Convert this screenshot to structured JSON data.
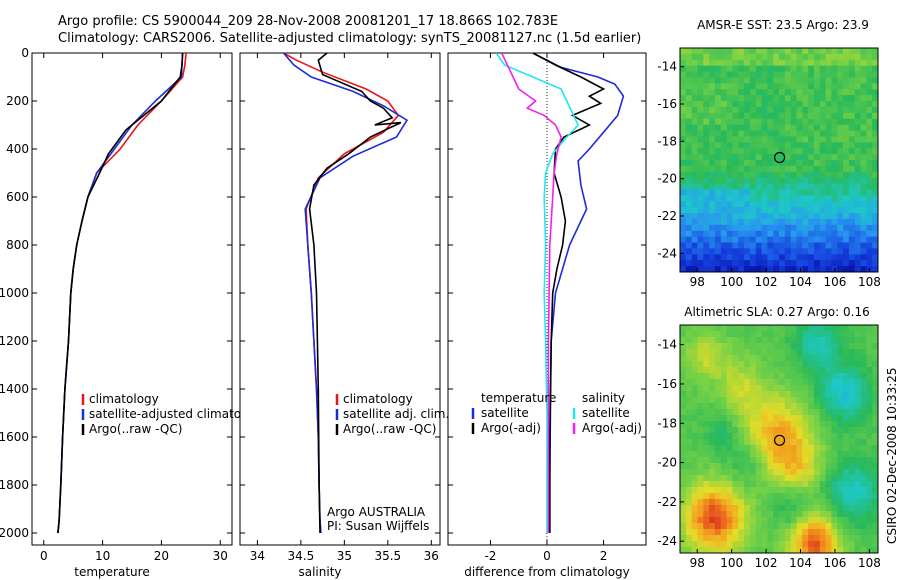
{
  "figure": {
    "title_line1": "Argo profile: CS 5900044_209 28-Nov-2008 20081201_17 18.866S 102.783E",
    "title_line2": "Climatology: CARS2006. Satellite-adjusted climatology: synTS_20081127.nc (1.5d earlier)",
    "footer_vertical": "CSIRO 02-Dec-2008 10:33:25",
    "colors": {
      "climatology": "#e8141e",
      "satellite": "#1d2bd8",
      "argo": "#000000",
      "satellite_sal": "#22e6f0",
      "argo_sal": "#f51ff0"
    }
  },
  "chart_data": [
    {
      "type": "line",
      "id": "temperature",
      "xlabel": "temperature",
      "ylabel": "",
      "xlim": [
        -2,
        32
      ],
      "ylim": [
        2050,
        0
      ],
      "xticks": [
        0,
        10,
        20,
        30
      ],
      "yticks": [
        0,
        200,
        400,
        600,
        800,
        1000,
        1200,
        1400,
        1600,
        1800,
        2000
      ],
      "legend": [
        "climatology",
        "satellite-adjusted climatology",
        "Argo(..raw -QC)"
      ],
      "series": [
        {
          "name": "climatology",
          "color_key": "climatology",
          "x": [
            24.2,
            24,
            23.6,
            20,
            16,
            13,
            11,
            9,
            7.5,
            6.5,
            5.6,
            5,
            4.6,
            4.2,
            3.6,
            3.2,
            2.9,
            2.6,
            2.4
          ],
          "y": [
            0,
            50,
            100,
            200,
            300,
            400,
            450,
            500,
            600,
            700,
            800,
            900,
            1000,
            1200,
            1400,
            1600,
            1800,
            1950,
            2000
          ]
        },
        {
          "name": "satellite-adjusted",
          "color_key": "satellite",
          "x": [
            23.6,
            23.5,
            23.4,
            19,
            15,
            12,
            10.5,
            9,
            7.5,
            6.5,
            5.6,
            5,
            4.6,
            4.2,
            3.6,
            3.2,
            2.9,
            2.6,
            2.4
          ],
          "y": [
            0,
            50,
            100,
            200,
            300,
            400,
            450,
            500,
            600,
            700,
            800,
            900,
            1000,
            1200,
            1400,
            1600,
            1800,
            1950,
            2000
          ]
        },
        {
          "name": "Argo",
          "color_key": "argo",
          "x": [
            23.6,
            23.5,
            23.2,
            20,
            17,
            14,
            11,
            9.5,
            7.5,
            6.5,
            5.6,
            5,
            4.6,
            4.2,
            3.6,
            3.2,
            2.9,
            2.6,
            2.4
          ],
          "y": [
            0,
            50,
            100,
            200,
            260,
            320,
            420,
            500,
            600,
            700,
            800,
            900,
            1000,
            1200,
            1400,
            1600,
            1800,
            1950,
            2000
          ]
        }
      ]
    },
    {
      "type": "line",
      "id": "salinity",
      "xlabel": "salinity",
      "xlim": [
        33.8,
        36.1
      ],
      "ylim": [
        2050,
        0
      ],
      "xticks": [
        34,
        34.5,
        35,
        35.5,
        36
      ],
      "legend": [
        "climatology",
        "satellite adj. clim.",
        "Argo(..raw -QC)"
      ],
      "annotation": [
        "Argo AUSTRALIA",
        "PI: Susan Wijffels"
      ],
      "series": [
        {
          "name": "climatology",
          "color_key": "climatology",
          "x": [
            34.3,
            34.45,
            34.75,
            35.25,
            35.5,
            35.62,
            35.45,
            35,
            34.7,
            34.56,
            34.58,
            34.62,
            34.65,
            34.68,
            34.7,
            34.71,
            34.72,
            34.73
          ],
          "y": [
            0,
            30,
            80,
            150,
            200,
            260,
            330,
            420,
            520,
            650,
            800,
            1000,
            1200,
            1400,
            1600,
            1800,
            1950,
            2000
          ]
        },
        {
          "name": "satellite-adjusted",
          "color_key": "satellite",
          "x": [
            34.3,
            34.42,
            34.62,
            35.1,
            35.45,
            35.72,
            35.6,
            35.1,
            34.72,
            34.55,
            34.58,
            34.62,
            34.65,
            34.68,
            34.7,
            34.71,
            34.72,
            34.73
          ],
          "y": [
            0,
            50,
            100,
            160,
            220,
            280,
            350,
            430,
            520,
            650,
            800,
            1000,
            1200,
            1400,
            1600,
            1800,
            1950,
            2000
          ]
        },
        {
          "name": "Argo",
          "color_key": "argo",
          "x": [
            34.8,
            34.7,
            34.75,
            35.2,
            35.3,
            35.45,
            35.55,
            35.35,
            35.65,
            35.3,
            35.05,
            34.8,
            34.65,
            34.6,
            34.65,
            34.68,
            34.7,
            34.71,
            34.72
          ],
          "y": [
            0,
            30,
            90,
            160,
            200,
            230,
            270,
            300,
            290,
            350,
            420,
            480,
            550,
            650,
            800,
            1000,
            1400,
            1800,
            2000
          ]
        }
      ]
    },
    {
      "type": "line",
      "id": "difference",
      "xlabel": "difference from climatology",
      "xlim": [
        -3.5,
        3.5
      ],
      "ylim": [
        2050,
        0
      ],
      "xticks": [
        -2,
        0,
        2
      ],
      "legend_titles": [
        "temperature",
        "salinity"
      ],
      "legend_left": [
        "satellite",
        "Argo(-adj)"
      ],
      "legend_right": [
        "satellite",
        "Argo(-adj)"
      ],
      "series": [
        {
          "name": "temperature satellite",
          "color_key": "satellite",
          "x": [
            -0.5,
            0.5,
            1.8,
            2.4,
            2.7,
            2.5,
            2.0,
            1.5,
            1.1,
            1.2,
            1.4,
            0.8,
            0.3,
            0.15,
            0.12,
            0.1,
            0.1
          ],
          "y": [
            0,
            60,
            100,
            130,
            180,
            260,
            330,
            400,
            450,
            550,
            650,
            800,
            1000,
            1200,
            1500,
            1800,
            2000
          ]
        },
        {
          "name": "temperature Argo",
          "color_key": "argo",
          "x": [
            -0.5,
            0.3,
            1.2,
            2.0,
            1.5,
            1.9,
            0.9,
            1.5,
            0.6,
            0.3,
            0.25,
            0.5,
            0.65,
            0.55,
            0.35,
            0.2,
            0.15,
            0.1,
            0.1
          ],
          "y": [
            0,
            50,
            100,
            150,
            180,
            210,
            260,
            300,
            350,
            400,
            500,
            600,
            700,
            800,
            900,
            1000,
            1200,
            1600,
            2000
          ]
        },
        {
          "name": "salinity satellite",
          "color_key": "satellite_sal",
          "x": [
            -1.8,
            -1.5,
            -0.5,
            0.5,
            1.1,
            0.7,
            0.2,
            -0.05,
            -0.1,
            -0.05,
            -0.1,
            -0.05,
            0,
            0,
            0
          ],
          "y": [
            0,
            50,
            100,
            150,
            300,
            350,
            420,
            500,
            600,
            800,
            1000,
            1200,
            1500,
            1800,
            2000
          ]
        },
        {
          "name": "salinity Argo",
          "color_key": "argo_sal",
          "x": [
            -1.6,
            -1.2,
            -1.0,
            -0.4,
            -0.7,
            -0.1,
            0.3,
            0.5,
            0.35,
            0.25,
            0.2,
            0.1,
            0.05,
            0.05
          ],
          "y": [
            0,
            100,
            150,
            200,
            230,
            260,
            300,
            350,
            420,
            500,
            600,
            800,
            1200,
            2000
          ]
        }
      ]
    },
    {
      "type": "heatmap",
      "id": "sst",
      "title": "AMSR-E SST: 23.5 Argo: 23.9",
      "xlim": [
        97,
        108.5
      ],
      "ylim": [
        -25,
        -13
      ],
      "xticks": [
        98,
        100,
        102,
        104,
        106,
        108
      ],
      "yticks": [
        -14,
        -16,
        -18,
        -20,
        -22,
        -24
      ],
      "marker": [
        102.783,
        -18.866
      ]
    },
    {
      "type": "heatmap",
      "id": "sla",
      "title": "Altimetric SLA: 0.27 Argo: 0.16",
      "xlim": [
        97,
        108.5
      ],
      "ylim": [
        -24.6,
        -13
      ],
      "xticks": [
        98,
        100,
        102,
        104,
        106,
        108
      ],
      "yticks": [
        -14,
        -16,
        -18,
        -20,
        -22,
        -24
      ],
      "marker": [
        102.783,
        -18.866
      ]
    }
  ]
}
